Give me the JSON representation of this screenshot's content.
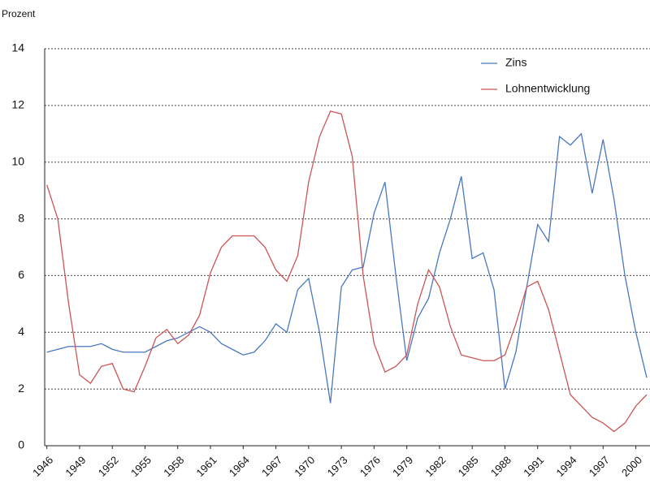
{
  "chart_data": {
    "type": "line",
    "y_label": "Prozent",
    "x": [
      1946,
      1947,
      1948,
      1949,
      1950,
      1951,
      1952,
      1953,
      1954,
      1955,
      1956,
      1957,
      1958,
      1959,
      1960,
      1961,
      1962,
      1963,
      1964,
      1965,
      1966,
      1967,
      1968,
      1969,
      1970,
      1971,
      1972,
      1973,
      1974,
      1975,
      1976,
      1977,
      1978,
      1979,
      1980,
      1981,
      1982,
      1983,
      1984,
      1985,
      1986,
      1987,
      1988,
      1989,
      1990,
      1991,
      1992,
      1993,
      1994,
      1995,
      1996,
      1997,
      1998,
      1999,
      2000,
      2001
    ],
    "series": [
      {
        "name": "Zins",
        "color": "#4a78c0",
        "values": [
          3.3,
          3.4,
          3.5,
          3.5,
          3.5,
          3.6,
          3.4,
          3.3,
          3.3,
          3.3,
          3.5,
          3.7,
          3.8,
          4.0,
          4.2,
          4.0,
          3.6,
          3.4,
          3.2,
          3.3,
          3.7,
          4.3,
          4.0,
          5.5,
          5.9,
          4.0,
          1.5,
          5.6,
          6.2,
          6.3,
          8.2,
          9.3,
          6.0,
          3.0,
          4.5,
          5.2,
          6.8,
          8.0,
          9.5,
          6.6,
          6.8,
          5.5,
          2.0,
          3.3,
          5.6,
          7.8,
          7.2,
          10.9,
          10.6,
          11.0,
          8.9,
          10.8,
          8.7,
          6.0,
          4.0,
          2.4
        ]
      },
      {
        "name": "Lohnentwicklung",
        "color": "#cc5555",
        "values": [
          9.2,
          8.0,
          5.0,
          2.5,
          2.2,
          2.8,
          2.9,
          2.0,
          1.9,
          2.8,
          3.8,
          4.1,
          3.6,
          3.9,
          4.6,
          6.1,
          7.0,
          7.4,
          7.4,
          7.4,
          7.0,
          6.2,
          5.8,
          6.7,
          9.3,
          10.9,
          11.8,
          11.7,
          10.2,
          6.0,
          3.6,
          2.6,
          2.8,
          3.2,
          5.0,
          6.2,
          5.6,
          4.2,
          3.2,
          3.1,
          3.0,
          3.0,
          3.2,
          4.3,
          5.6,
          5.8,
          4.8,
          3.3,
          1.8,
          1.4,
          1.0,
          0.8,
          0.5,
          0.8,
          1.4,
          1.8
        ]
      }
    ],
    "xlim": [
      1945.8,
      2001.3
    ],
    "xticks": [
      1946,
      1949,
      1952,
      1955,
      1958,
      1961,
      1964,
      1967,
      1970,
      1973,
      1976,
      1979,
      1982,
      1985,
      1988,
      1991,
      1994,
      1997,
      2000
    ],
    "ylim": [
      0,
      14
    ],
    "yticks": [
      0,
      2,
      4,
      6,
      8,
      10,
      12,
      14
    ],
    "grid": true,
    "legend": "top-right"
  }
}
